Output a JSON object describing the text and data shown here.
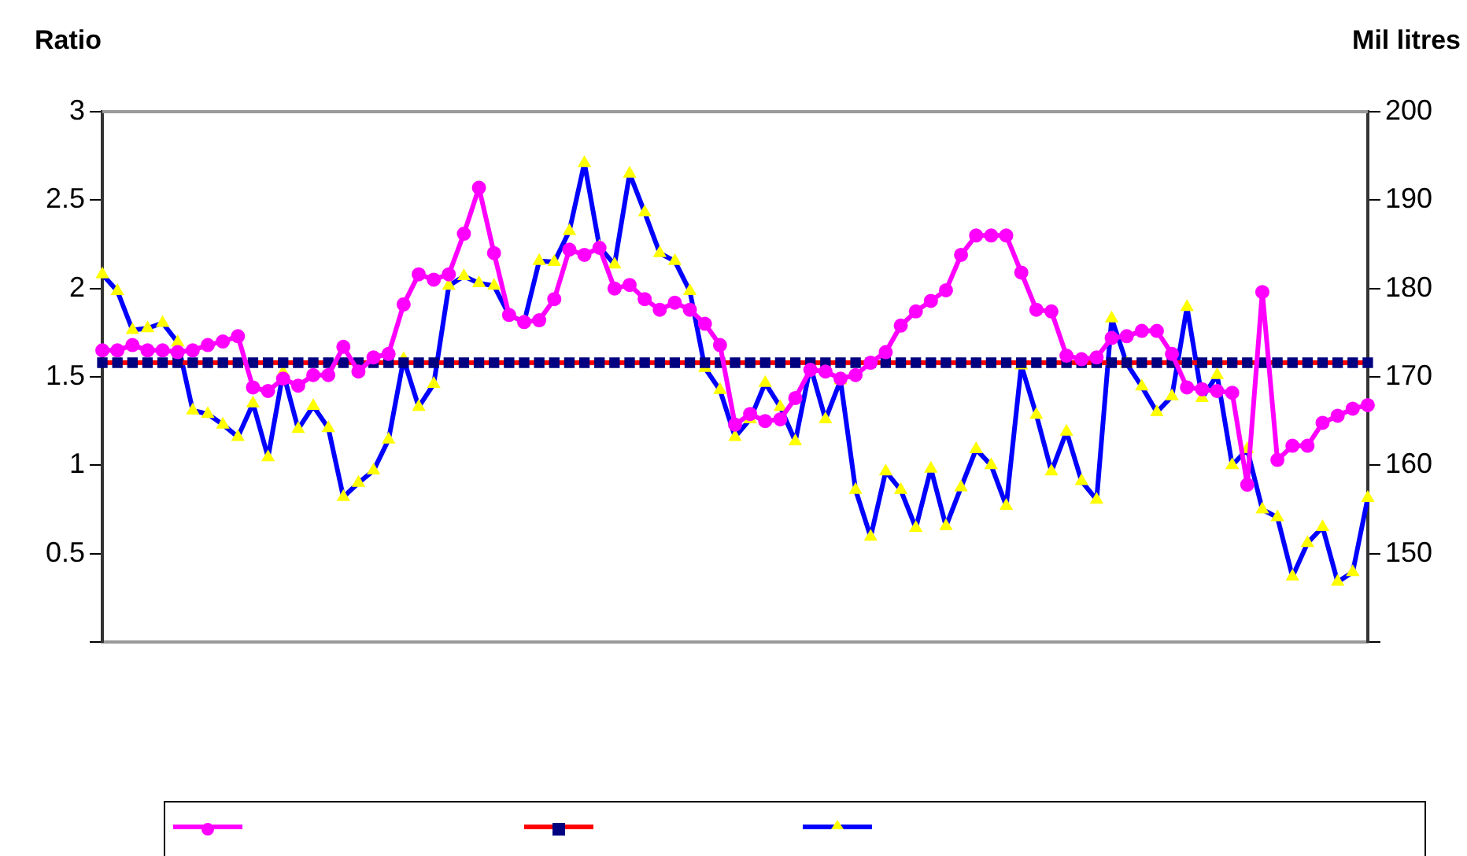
{
  "chart_data": {
    "type": "line",
    "ylabel": "Ratio",
    "y2label": "Mil litres",
    "categories": [
      null,
      null,
      null,
      null,
      null,
      null,
      null,
      null,
      null,
      null,
      null,
      null,
      null,
      null,
      null,
      null,
      null,
      null,
      null,
      null,
      null,
      null,
      null,
      null,
      null,
      null,
      null,
      null,
      null,
      null,
      null,
      null,
      null,
      null,
      null,
      null,
      null,
      null,
      null,
      null,
      null,
      null,
      null,
      null,
      null,
      null,
      null,
      null,
      null,
      null,
      null,
      null,
      null,
      null,
      null,
      null,
      null,
      null,
      null,
      null,
      null,
      null,
      null,
      null,
      null,
      null,
      null,
      null,
      null,
      null,
      null,
      null,
      null,
      null,
      null,
      null,
      null,
      null,
      null,
      null,
      null,
      null,
      null,
      null,
      null
    ],
    "ylim": [
      0,
      3
    ],
    "yticks": [
      {
        "value": 0,
        "label": null
      },
      0.5,
      1,
      1.5,
      2,
      2.5,
      3
    ],
    "y2lim": [
      140,
      200
    ],
    "y2ticks": [
      {
        "value": 140,
        "label": null
      },
      150,
      160,
      170,
      180,
      190,
      200
    ],
    "grid": false,
    "line_style": "solid",
    "series": [
      {
        "color": "#ff00ff",
        "marker": "circle",
        "values": [
          1.65,
          1.65,
          1.68,
          1.65,
          1.65,
          1.64,
          1.65,
          1.68,
          1.7,
          1.73,
          1.44,
          1.42,
          1.49,
          1.45,
          1.51,
          1.51,
          1.67,
          1.53,
          1.61,
          1.63,
          1.91,
          2.08,
          2.05,
          2.08,
          2.31,
          2.57,
          2.2,
          1.85,
          1.81,
          1.82,
          1.94,
          2.22,
          2.19,
          2.23,
          2,
          2.02,
          1.94,
          1.88,
          1.92,
          1.88,
          1.8,
          1.68,
          1.23,
          1.29,
          1.25,
          1.26,
          1.38,
          1.54,
          1.53,
          1.49,
          1.51,
          1.58,
          1.64,
          1.79,
          1.87,
          1.93,
          1.99,
          2.19,
          2.3,
          2.3,
          2.3,
          2.09,
          1.88,
          1.87,
          1.62,
          1.6,
          1.61,
          1.72,
          1.73,
          1.76,
          1.76,
          1.63,
          1.44,
          1.43,
          1.42,
          1.41,
          0.89,
          1.98,
          1.03,
          1.11,
          1.11,
          1.24,
          1.28,
          1.32,
          1.34
        ]
      },
      {
        "color": "#ff0000",
        "marker": "square",
        "values": [
          1.58,
          1.58,
          1.58,
          1.58,
          1.58,
          1.58,
          1.58,
          1.58,
          1.58,
          1.58,
          1.58,
          1.58,
          1.58,
          1.58,
          1.58,
          1.58,
          1.58,
          1.58,
          1.58,
          1.58,
          1.58,
          1.58,
          1.58,
          1.58,
          1.58,
          1.58,
          1.58,
          1.58,
          1.58,
          1.58,
          1.58,
          1.58,
          1.58,
          1.58,
          1.58,
          1.58,
          1.58,
          1.58,
          1.58,
          1.58,
          1.58,
          1.58,
          1.58,
          1.58,
          1.58,
          1.58,
          1.58,
          1.58,
          1.58,
          1.58,
          1.58,
          1.58,
          1.58,
          1.58,
          1.58,
          1.58,
          1.58,
          1.58,
          1.58,
          1.58,
          1.58,
          1.58,
          1.58,
          1.58,
          1.58,
          1.58,
          1.58,
          1.58,
          1.58,
          1.58,
          1.58,
          1.58,
          1.58,
          1.58,
          1.58,
          1.58,
          1.58,
          1.58,
          1.58,
          1.58,
          1.58,
          1.58,
          1.58,
          1.58,
          1.58
        ]
      },
      {
        "color": "#0000ff",
        "marker": "triangle",
        "axis": "y2",
        "values": [
          181.6,
          179.7,
          175.3,
          175.5,
          176.1,
          173.9,
          166.2,
          165.8,
          164.6,
          163.2,
          167,
          160.9,
          170.5,
          164.1,
          166.7,
          164.2,
          156.4,
          158,
          159.4,
          162.9,
          172,
          166.6,
          169.2,
          180.3,
          181.4,
          180.6,
          180.3,
          177,
          176.2,
          183.1,
          183,
          186.5,
          194.2,
          184.7,
          182.7,
          193,
          188.6,
          184,
          183.1,
          179.7,
          171,
          168.5,
          163.2,
          165.2,
          169.3,
          166.6,
          162.7,
          171.2,
          165.2,
          169.6,
          157.2,
          151.9,
          159.3,
          157.2,
          152.9,
          159.6,
          153.1,
          157.5,
          161.8,
          160,
          155.4,
          171.3,
          165.7,
          159.3,
          163.8,
          158.2,
          156.1,
          176.6,
          171.5,
          168.9,
          166,
          167.8,
          177.9,
          167.6,
          170.2,
          160,
          161.8,
          155,
          154.1,
          147.4,
          151.2,
          153,
          146.8,
          147.9,
          156.3
        ]
      }
    ]
  }
}
